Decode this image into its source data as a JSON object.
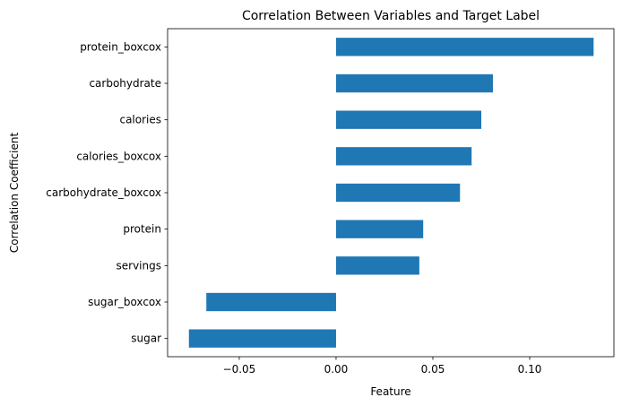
{
  "chart_data": {
    "type": "bar",
    "orientation": "horizontal",
    "title": "Correlation Between Variables and Target Label",
    "xlabel": "Feature",
    "ylabel": "Correlation Coefficient",
    "categories": [
      "protein_boxcox",
      "carbohydrate",
      "calories",
      "calories_boxcox",
      "carbohydrate_boxcox",
      "protein",
      "servings",
      "sugar_boxcox",
      "sugar"
    ],
    "values": [
      0.133,
      0.081,
      0.075,
      0.07,
      0.064,
      0.045,
      0.043,
      -0.067,
      -0.076
    ],
    "xlim": [
      -0.087,
      0.1435
    ],
    "xticks": [
      -0.05,
      0.0,
      0.05,
      0.1
    ],
    "xtick_labels": [
      "−0.05",
      "0.00",
      "0.05",
      "0.10"
    ],
    "bar_color": "#1f77b4",
    "grid": false,
    "legend": "none"
  }
}
